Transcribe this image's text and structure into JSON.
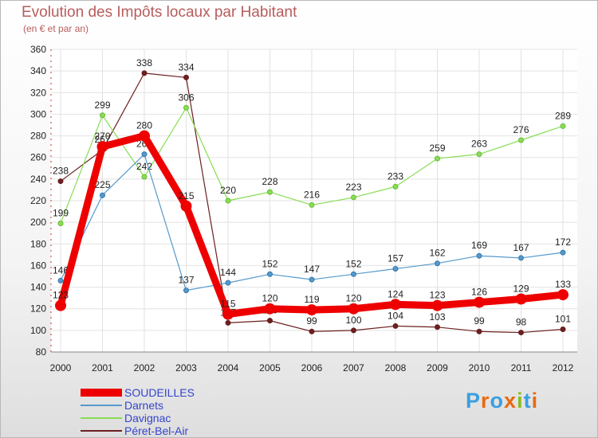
{
  "chart_data": {
    "type": "line",
    "title": "Evolution des Impôts locaux par Habitant",
    "subtitle": "(en € et par an)",
    "xlabel": "",
    "ylabel": "",
    "categories": [
      "2000",
      "2001",
      "2002",
      "2003",
      "2004",
      "2005",
      "2006",
      "2007",
      "2008",
      "2009",
      "2010",
      "2011",
      "2012"
    ],
    "ylim": [
      80,
      360
    ],
    "yticks": [
      80,
      100,
      120,
      140,
      160,
      180,
      200,
      220,
      240,
      260,
      280,
      300,
      320,
      340,
      360
    ],
    "grid": true,
    "legend": "bottom-left",
    "series": [
      {
        "name": "Péret-Bel-Air",
        "color": "#6b1f1f",
        "values": [
          238,
          267,
          338,
          334,
          107,
          109,
          99,
          100,
          104,
          103,
          99,
          98,
          101
        ]
      },
      {
        "name": "Davignac",
        "color": "#88dd55",
        "values": [
          199,
          299,
          242,
          306,
          220,
          228,
          216,
          223,
          233,
          259,
          263,
          276,
          289
        ]
      },
      {
        "name": "Darnets",
        "color": "#5599cc",
        "values": [
          146,
          225,
          263,
          137,
          144,
          152,
          147,
          152,
          157,
          162,
          169,
          167,
          172
        ]
      },
      {
        "name": "SOUDEILLES",
        "color": "#ee0000",
        "values": [
          123,
          270,
          280,
          215,
          115,
          120,
          119,
          120,
          124,
          123,
          126,
          129,
          133
        ]
      }
    ],
    "legend_order": [
      "SOUDEILLES",
      "Darnets",
      "Davignac",
      "Péret-Bel-Air"
    ]
  },
  "logo": {
    "text": "Proxiti",
    "colors": [
      "#3aa0e0",
      "#e86a10",
      "#3aa0e0",
      "#e86a10",
      "#88bb22",
      "#3aa0e0",
      "#e86a10"
    ]
  }
}
